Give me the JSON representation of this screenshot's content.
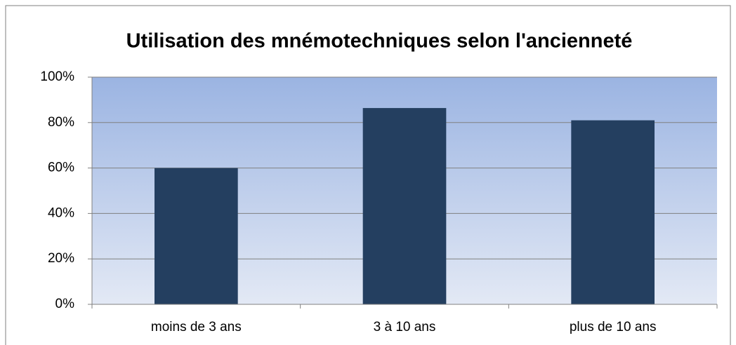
{
  "chart_data": {
    "type": "bar",
    "title": "Utilisation des mnémotechniques selon l'ancienneté",
    "categories": [
      "moins de 3 ans",
      "3 à 10 ans",
      "plus de 10 ans"
    ],
    "values": [
      60,
      86.4,
      81
    ],
    "color": "#243f60",
    "ylim": [
      0,
      100
    ],
    "yticks": [
      {
        "value": 0,
        "label": "0%"
      },
      {
        "value": 20,
        "label": "20%"
      },
      {
        "value": 40,
        "label": "40%"
      },
      {
        "value": 60,
        "label": "60%"
      },
      {
        "value": 80,
        "label": "80%"
      },
      {
        "value": 100,
        "label": "100%"
      }
    ],
    "grid": true
  }
}
